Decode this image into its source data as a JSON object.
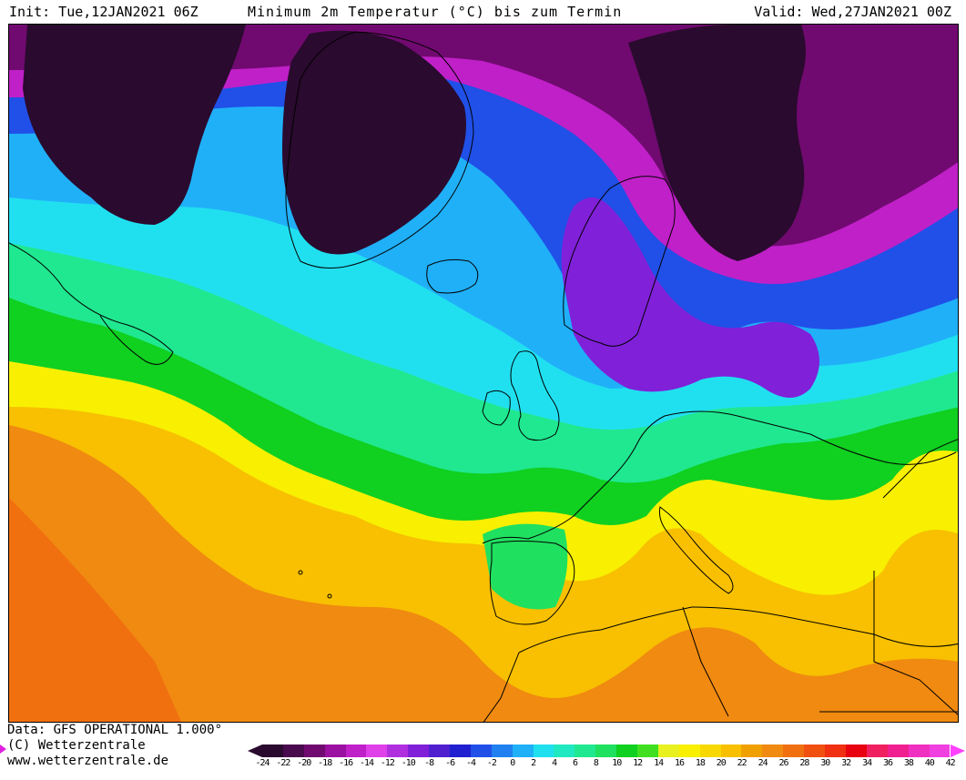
{
  "header": {
    "init": "Init: Tue,12JAN2021 06Z",
    "title": "Minimum 2m Temperatur (°C) bis zum Termin",
    "valid": "Valid: Wed,27JAN2021 00Z"
  },
  "footer": {
    "data_source": "Data: GFS OPERATIONAL 1.000°",
    "copyright": "(C) Wetterzentrale",
    "url": "www.wetterzentrale.de"
  },
  "legend": {
    "unit": "°C",
    "labels": [
      "-24",
      "-22",
      "-20",
      "-18",
      "-16",
      "-14",
      "-12",
      "-10",
      "-8",
      "-6",
      "-4",
      "-2",
      "0",
      "2",
      "4",
      "6",
      "8",
      "10",
      "12",
      "14",
      "16",
      "18",
      "20",
      "22",
      "24",
      "26",
      "28",
      "30",
      "32",
      "34",
      "36",
      "38",
      "40",
      "42"
    ],
    "colors": [
      "#2a0a2e",
      "#4a0a4e",
      "#700a70",
      "#9a10a0",
      "#c020c8",
      "#e040e8",
      "#b030e0",
      "#8020d8",
      "#5020d0",
      "#2020d0",
      "#2050e8",
      "#2080f0",
      "#20b0f8",
      "#20e0f0",
      "#20e8c0",
      "#20e890",
      "#20e060",
      "#10d020",
      "#40e020",
      "#e8f020",
      "#f8f000",
      "#f8d800",
      "#f8c000",
      "#f0a000",
      "#f08a10",
      "#f07010",
      "#f05010",
      "#f03010",
      "#e80010",
      "#f02060",
      "#f02090",
      "#f030c0",
      "#f040e0"
    ]
  },
  "map": {
    "name": "Europe / North Atlantic minimum 2m temperature map",
    "palette": {
      "deep_cold": "#2a0a2e",
      "very_cold": "#700a70",
      "cold_purple": "#c020c8",
      "violet": "#8020d8",
      "blue": "#2050e8",
      "light_blue": "#20b0f8",
      "cyan": "#20e0f0",
      "teal": "#20e890",
      "green": "#10d020",
      "yellow": "#f8f000",
      "gold": "#f8c000",
      "orange": "#f08a10",
      "dark_orange": "#f07010",
      "coastline": "#000000"
    }
  }
}
